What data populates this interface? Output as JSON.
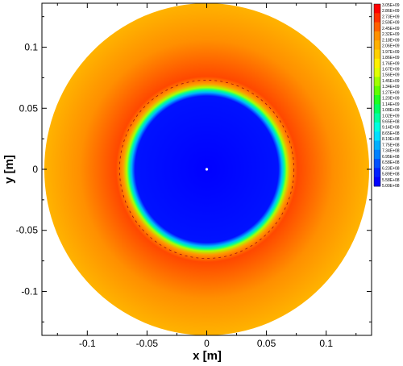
{
  "chart_data": {
    "type": "heatmap",
    "title": "",
    "xlabel": "x [m]",
    "ylabel": "y [m]",
    "xlim": [
      -0.138,
      0.138
    ],
    "ylim": [
      -0.136,
      0.136
    ],
    "x_ticks": [
      -0.1,
      -0.05,
      0,
      0.05,
      0.1
    ],
    "x_tick_labels": [
      "-0.1",
      "-0.05",
      "0",
      "0.05",
      "0.1"
    ],
    "y_ticks": [
      -0.1,
      -0.05,
      0,
      0.05,
      0.1
    ],
    "y_tick_labels": [
      "-0.1",
      "-0.05",
      "0",
      "0.05",
      "0.1"
    ],
    "field_shape": "disk",
    "outer_radius_m": 0.136,
    "inner_radius_m": 0.065,
    "transition_width_m": 0.005,
    "inner_value": 500000000.0,
    "ring_peak_radius_m": 0.076,
    "ring_peak_value": 2850000000.0,
    "outer_edge_value": 2500000000.0,
    "center_marker": true,
    "grid": false,
    "legend_position": "right",
    "colorbar": {
      "min": 500000000.0,
      "max": 3050000000.0,
      "labels": [
        "3.05E+09",
        "2.86E+09",
        "2.73E+09",
        "2.59E+09",
        "2.45E+09",
        "2.32E+09",
        "2.18E+09",
        "2.06E+09",
        "1.97E+09",
        "1.86E+09",
        "1.76E+09",
        "1.67E+09",
        "1.56E+09",
        "1.45E+09",
        "1.34E+09",
        "1.27E+09",
        "1.20E+09",
        "1.14E+09",
        "1.08E+09",
        "1.02E+09",
        "9.65E+08",
        "9.14E+08",
        "8.65E+08",
        "8.19E+08",
        "7.75E+08",
        "7.34E+08",
        "6.95E+08",
        "6.58E+08",
        "6.23E+08",
        "5.89E+08",
        "5.58E+08",
        "5.00E+08"
      ],
      "colors": [
        "#ff0000",
        "#ff3000",
        "#ff6000",
        "#ff9000",
        "#ffb000",
        "#ffd000",
        "#fff000",
        "#e0ff00",
        "#a0ff00",
        "#60ff00",
        "#20ff20",
        "#00ff60",
        "#00ffa0",
        "#00ffe0",
        "#00e0ff",
        "#00b0ff",
        "#0080ff",
        "#0050ff",
        "#0020ff",
        "#0000ff"
      ]
    }
  }
}
